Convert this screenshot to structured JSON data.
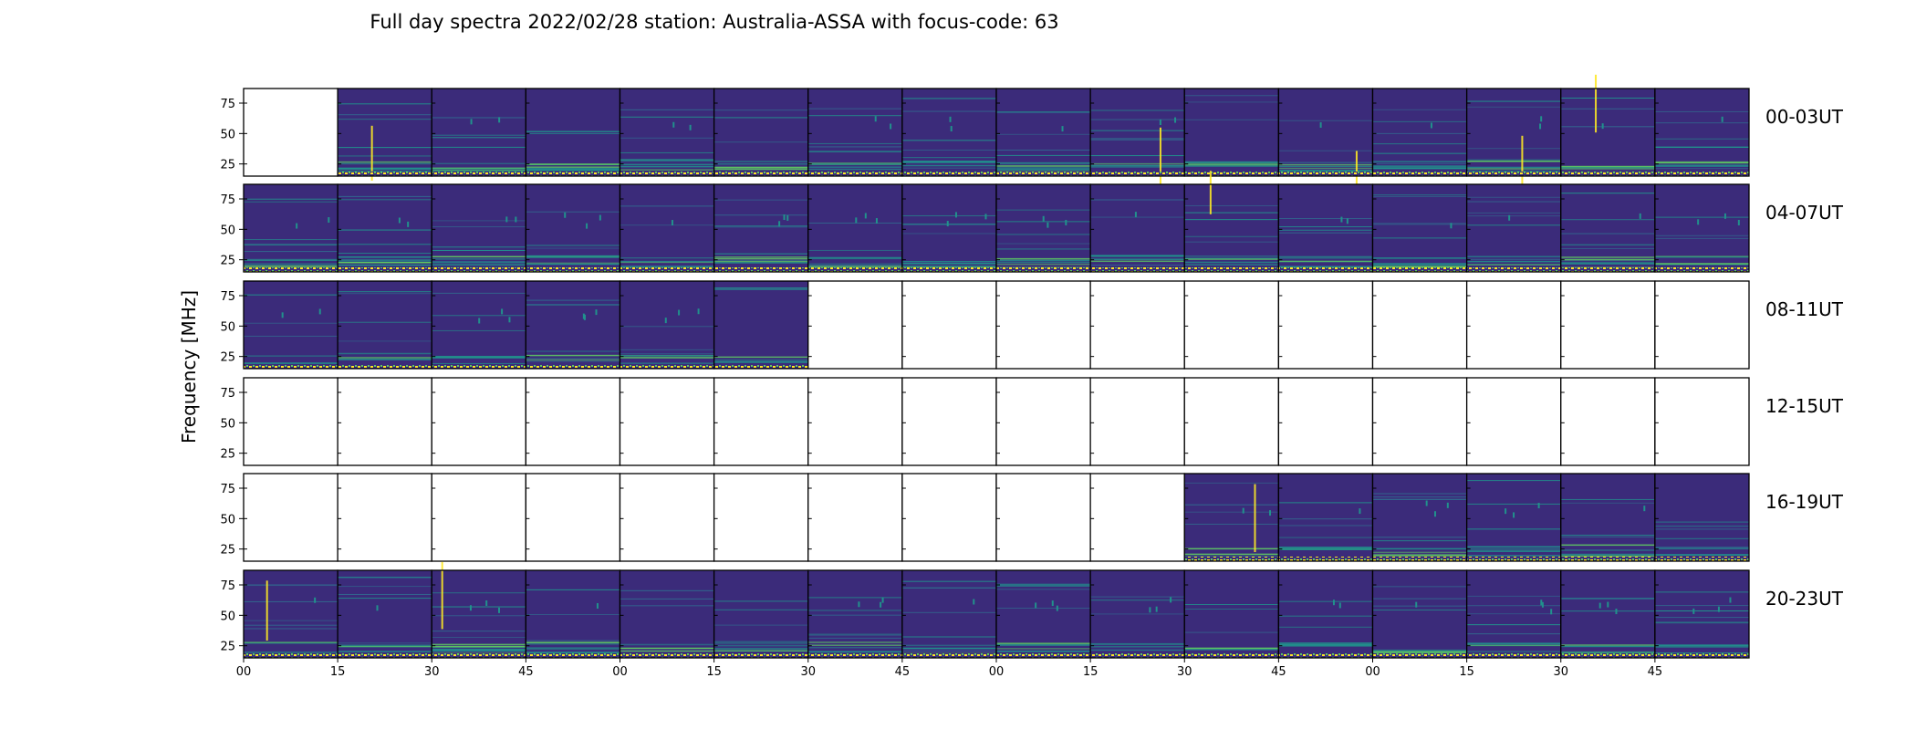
{
  "title": "Full day spectra 2022/02/28 station: Australia-ASSA with focus-code: 63",
  "chart_data": {
    "type": "heatmap",
    "title": "Full day spectra 2022/02/28 station: Australia-ASSA with focus-code: 63",
    "ylabel": "Frequency [MHz]",
    "xlabel": "",
    "y_ticks": [
      "25",
      "50",
      "75"
    ],
    "ylim": [
      15,
      87
    ],
    "x_ticks": [
      "00",
      "15",
      "30",
      "45",
      "00",
      "15",
      "30",
      "45",
      "00",
      "15",
      "30",
      "45",
      "00",
      "15",
      "30",
      "45"
    ],
    "colormap": "viridis",
    "colors": {
      "low": "#440154",
      "base": "#3b2b7a",
      "mid": "#31688e",
      "teal": "#21918c",
      "green": "#5ec962",
      "high": "#fde725"
    },
    "row_labels": [
      "00-03UT",
      "04-07UT",
      "08-11UT",
      "12-15UT",
      "16-19UT",
      "20-23UT"
    ],
    "panels_per_row": 16,
    "panel_minutes": 15,
    "available_panels": [
      [
        0,
        1,
        1,
        1,
        1,
        1,
        1,
        1,
        1,
        1,
        1,
        1,
        1,
        1,
        1,
        1
      ],
      [
        1,
        1,
        1,
        1,
        1,
        1,
        1,
        1,
        1,
        1,
        1,
        1,
        1,
        1,
        1,
        1
      ],
      [
        1,
        1,
        1,
        1,
        1,
        1,
        0,
        0,
        0,
        0,
        0,
        0,
        0,
        0,
        0,
        0
      ],
      [
        0,
        0,
        0,
        0,
        0,
        0,
        0,
        0,
        0,
        0,
        0,
        0,
        0,
        0,
        0,
        0
      ],
      [
        0,
        0,
        0,
        0,
        0,
        0,
        0,
        0,
        0,
        0,
        1,
        1,
        1,
        1,
        1,
        1
      ],
      [
        1,
        1,
        1,
        1,
        1,
        1,
        1,
        1,
        1,
        1,
        1,
        1,
        1,
        1,
        1,
        1
      ]
    ]
  }
}
